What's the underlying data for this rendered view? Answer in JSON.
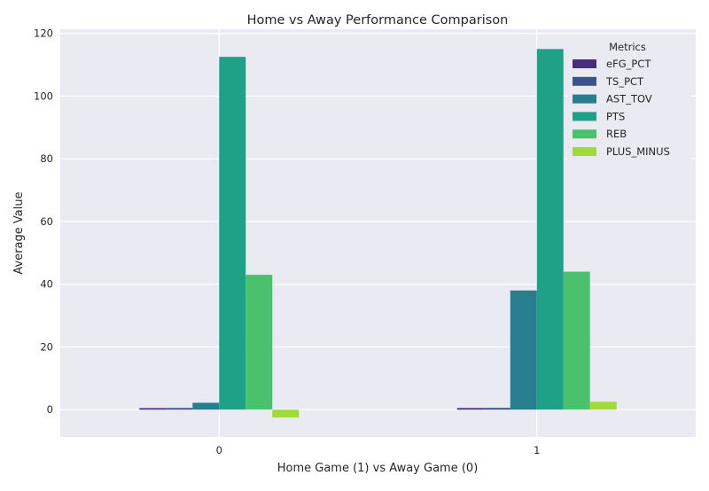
{
  "chart_data": {
    "type": "bar",
    "title": "Home vs Away Performance Comparison",
    "xlabel": "Home Game (1) vs Away Game (0)",
    "ylabel": "Average Value",
    "categories": [
      "0",
      "1"
    ],
    "ylim": [
      -8.7,
      121.3
    ],
    "yticks": [
      0,
      20,
      40,
      60,
      80,
      100,
      120
    ],
    "grid": true,
    "legend": {
      "title": "Metrics",
      "placement": "top-right"
    },
    "series": [
      {
        "name": "eFG_PCT",
        "color": "#472f7d",
        "values": [
          0.5,
          0.52
        ]
      },
      {
        "name": "TS_PCT",
        "color": "#3b528b",
        "values": [
          0.54,
          0.56
        ]
      },
      {
        "name": "AST_TOV",
        "color": "#287d8e",
        "values": [
          2.2,
          38.0
        ]
      },
      {
        "name": "PTS",
        "color": "#1fa187",
        "values": [
          112.5,
          115.0
        ]
      },
      {
        "name": "REB",
        "color": "#4ac16d",
        "values": [
          43.0,
          44.0
        ]
      },
      {
        "name": "PLUS_MINUS",
        "color": "#a0da39",
        "values": [
          -2.5,
          2.5
        ]
      }
    ]
  }
}
